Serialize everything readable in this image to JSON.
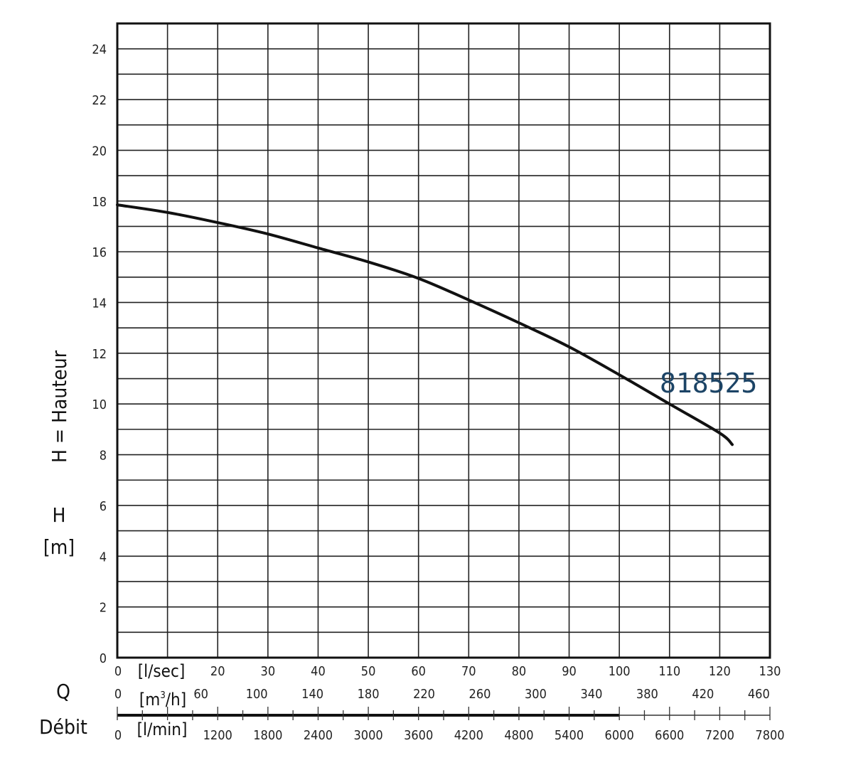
{
  "chart_data": {
    "type": "line",
    "series": [
      {
        "name": "818525",
        "x_l_sec": [
          0,
          10,
          20,
          30,
          40,
          50,
          60,
          70,
          80,
          90,
          100,
          110,
          120,
          122.5
        ],
        "y_m": [
          17.85,
          17.55,
          17.15,
          16.7,
          16.15,
          15.6,
          14.95,
          14.1,
          13.2,
          12.25,
          11.15,
          10.0,
          8.85,
          8.4
        ]
      }
    ],
    "y_axis": {
      "label_main": "H =  Hauteur",
      "label_symbol": "H",
      "label_unit": "[m]",
      "ticks": [
        "0",
        "2",
        "4",
        "6",
        "8",
        "10",
        "12",
        "14",
        "16",
        "18",
        "20",
        "22",
        "24"
      ],
      "ylim": [
        0,
        25
      ]
    },
    "x_axis": {
      "label_symbol": "Q",
      "label_name": "Débit",
      "xlim_l_sec": [
        0,
        130
      ],
      "scales": [
        {
          "unit": "[l/sec]",
          "first": "0",
          "ticks": [
            "20",
            "30",
            "40",
            "50",
            "60",
            "70",
            "80",
            "90",
            "100",
            "110",
            "120",
            "130"
          ]
        },
        {
          "unit_prefix": "[m",
          "unit_sup": "3",
          "unit_suffix": "/h]",
          "first": "0",
          "ticks": [
            "60",
            "100",
            "140",
            "180",
            "220",
            "260",
            "300",
            "340",
            "380",
            "420",
            "460"
          ]
        },
        {
          "unit": "[l/min]",
          "first": "0",
          "ticks": [
            "1200",
            "1800",
            "2400",
            "3000",
            "3600",
            "4200",
            "4800",
            "5400",
            "6000",
            "6600",
            "7200",
            "7800"
          ]
        }
      ]
    },
    "grid": true,
    "curve_label": "818525"
  }
}
